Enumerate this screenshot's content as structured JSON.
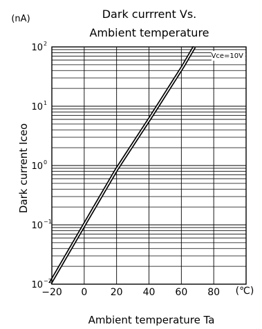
{
  "chart_data": {
    "type": "line",
    "title_line1": "Dark currrent  Vs.",
    "title_line2": "Ambient temperature",
    "xlabel": "Ambient temperature Ta",
    "ylabel": "Dark current Iceo",
    "y_unit": "(nA)",
    "x_unit": "(℃)",
    "annotation": "Vce=10V",
    "xscale": "linear",
    "yscale": "log",
    "xlim": [
      -20,
      100
    ],
    "ylim": [
      0.01,
      100
    ],
    "grid": true,
    "x_ticks": [
      {
        "value": -20,
        "label": "−20"
      },
      {
        "value": 0,
        "label": "0"
      },
      {
        "value": 20,
        "label": "20"
      },
      {
        "value": 40,
        "label": "40"
      },
      {
        "value": 60,
        "label": "60"
      },
      {
        "value": 80,
        "label": "80"
      }
    ],
    "y_ticks": [
      {
        "value": 0.01,
        "base": "10",
        "exp": "−2"
      },
      {
        "value": 0.1,
        "base": "10",
        "exp": "−1"
      },
      {
        "value": 1,
        "base": "10",
        "exp": "0"
      },
      {
        "value": 10,
        "base": "10",
        "exp": "1"
      },
      {
        "value": 100,
        "base": "10",
        "exp": "2"
      }
    ],
    "series": [
      {
        "x": [
          -21,
          0,
          20,
          41,
          61,
          68
        ],
        "y": [
          0.0103,
          0.1,
          0.86,
          6.5,
          47,
          100
        ]
      }
    ]
  }
}
